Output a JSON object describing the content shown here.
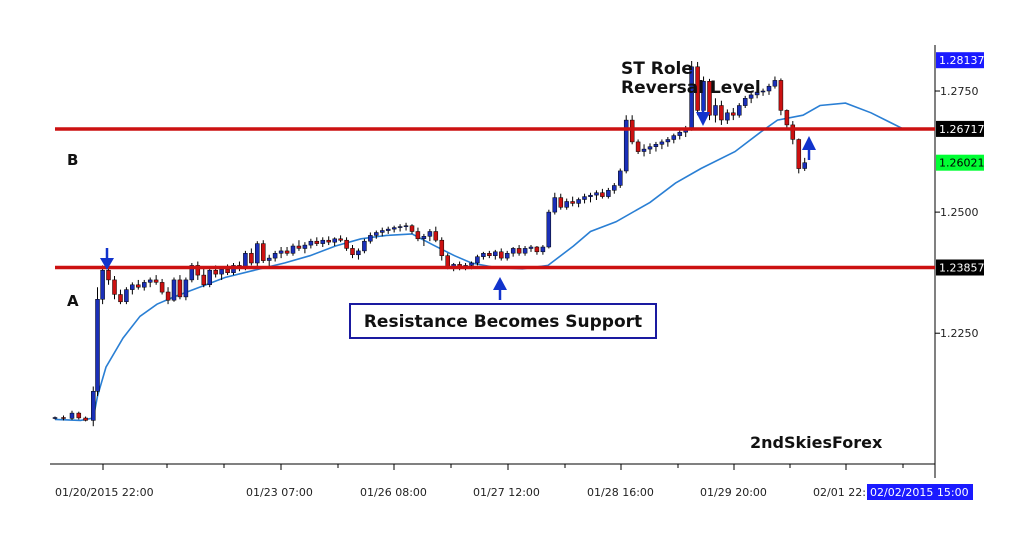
{
  "chart_data": {
    "type": "candlestick",
    "instrument": "",
    "y_ticks": [
      "1.2750",
      "1.2500",
      "1.2250"
    ],
    "y_tick_values": [
      1.275,
      1.25,
      1.225
    ],
    "ylim": [
      1.198,
      1.2845
    ],
    "x_ticks": [
      "01/20/2015 22:00",
      "01/23 07:00",
      "01/26 08:00",
      "01/27 12:00",
      "01/28 16:00",
      "01/29 20:00",
      "02/01 22:"
    ],
    "price_tags": {
      "top": {
        "label": "1.28137",
        "value": 1.28137,
        "bg": "#1a1aff",
        "fg": "#ffffff"
      },
      "level_b": {
        "label": "1.26717",
        "value": 1.26717,
        "bg": "#000000",
        "fg": "#ffffff"
      },
      "current": {
        "label": "1.26021",
        "value": 1.26021,
        "bg": "#00ff33",
        "fg": "#000000"
      },
      "level_a": {
        "label": "1.23857",
        "value": 1.23857,
        "bg": "#000000",
        "fg": "#ffffff"
      }
    },
    "current_time_label": "02/02/2015 15:00",
    "horizontal_levels": [
      {
        "name": "B",
        "value": 1.26717,
        "color": "#cc1111"
      },
      {
        "name": "A",
        "value": 1.23857,
        "color": "#cc1111"
      }
    ],
    "annotations": {
      "st_role_line1": "ST Role",
      "st_role_line2": "Reversal Level",
      "callout": "Resistance Becomes Support",
      "brand": "2ndSkiesForex"
    },
    "ma_series": [
      [
        0,
        1.2072
      ],
      [
        0.03,
        1.207
      ],
      [
        0.045,
        1.2075
      ],
      [
        0.05,
        1.212
      ],
      [
        0.06,
        1.218
      ],
      [
        0.08,
        1.224
      ],
      [
        0.1,
        1.2285
      ],
      [
        0.12,
        1.231
      ],
      [
        0.14,
        1.2325
      ],
      [
        0.17,
        1.2345
      ],
      [
        0.2,
        1.2365
      ],
      [
        0.23,
        1.2378
      ],
      [
        0.27,
        1.2395
      ],
      [
        0.3,
        1.241
      ],
      [
        0.33,
        1.243
      ],
      [
        0.36,
        1.2445
      ],
      [
        0.39,
        1.2452
      ],
      [
        0.42,
        1.2455
      ],
      [
        0.445,
        1.2432
      ],
      [
        0.47,
        1.241
      ],
      [
        0.49,
        1.2395
      ],
      [
        0.52,
        1.2385
      ],
      [
        0.55,
        1.2383
      ],
      [
        0.58,
        1.239
      ],
      [
        0.61,
        1.243
      ],
      [
        0.63,
        1.246
      ],
      [
        0.66,
        1.248
      ],
      [
        0.7,
        1.252
      ],
      [
        0.73,
        1.256
      ],
      [
        0.76,
        1.259
      ],
      [
        0.8,
        1.2625
      ],
      [
        0.83,
        1.2665
      ],
      [
        0.85,
        1.269
      ],
      [
        0.88,
        1.27
      ],
      [
        0.9,
        1.272
      ],
      [
        0.93,
        1.2725
      ],
      [
        0.96,
        1.2705
      ],
      [
        1.0,
        1.267
      ]
    ],
    "candles": [
      [
        0.0,
        1.2075,
        1.2078,
        1.2072,
        1.2076
      ],
      [
        0.01,
        1.2076,
        1.208,
        1.207,
        1.2074
      ],
      [
        0.02,
        1.2074,
        1.209,
        1.2071,
        1.2085
      ],
      [
        0.028,
        1.2085,
        1.2088,
        1.2072,
        1.2075
      ],
      [
        0.036,
        1.2075,
        1.2078,
        1.2068,
        1.207
      ],
      [
        0.045,
        1.207,
        1.214,
        1.2058,
        1.213
      ],
      [
        0.05,
        1.213,
        1.2345,
        1.212,
        1.232
      ],
      [
        0.056,
        1.232,
        1.239,
        1.231,
        1.238
      ],
      [
        0.063,
        1.238,
        1.2388,
        1.235,
        1.236
      ],
      [
        0.07,
        1.236,
        1.2368,
        1.232,
        1.233
      ],
      [
        0.077,
        1.233,
        1.234,
        1.231,
        1.2315
      ],
      [
        0.084,
        1.2315,
        1.2345,
        1.231,
        1.234
      ],
      [
        0.091,
        1.234,
        1.2355,
        1.233,
        1.235
      ],
      [
        0.098,
        1.235,
        1.236,
        1.234,
        1.2345
      ],
      [
        0.105,
        1.2345,
        1.236,
        1.2338,
        1.2355
      ],
      [
        0.112,
        1.2355,
        1.2365,
        1.2345,
        1.236
      ],
      [
        0.119,
        1.236,
        1.237,
        1.235,
        1.2355
      ],
      [
        0.126,
        1.2355,
        1.2362,
        1.233,
        1.2335
      ],
      [
        0.133,
        1.2335,
        1.2345,
        1.231,
        1.2318
      ],
      [
        0.14,
        1.2318,
        1.2365,
        1.2315,
        1.236
      ],
      [
        0.147,
        1.236,
        1.237,
        1.232,
        1.2325
      ],
      [
        0.154,
        1.2325,
        1.2365,
        1.2318,
        1.236
      ],
      [
        0.161,
        1.236,
        1.2395,
        1.2355,
        1.239
      ],
      [
        0.168,
        1.239,
        1.2398,
        1.236,
        1.237
      ],
      [
        0.175,
        1.237,
        1.2385,
        1.2345,
        1.235
      ],
      [
        0.182,
        1.235,
        1.2385,
        1.2345,
        1.238
      ],
      [
        0.189,
        1.238,
        1.239,
        1.2365,
        1.2372
      ],
      [
        0.196,
        1.2372,
        1.2388,
        1.236,
        1.2382
      ],
      [
        0.203,
        1.2382,
        1.2392,
        1.237,
        1.2375
      ],
      [
        0.21,
        1.2375,
        1.2395,
        1.237,
        1.239
      ],
      [
        0.217,
        1.239,
        1.2398,
        1.2378,
        1.2385
      ],
      [
        0.224,
        1.2385,
        1.242,
        1.238,
        1.2415
      ],
      [
        0.231,
        1.2415,
        1.2425,
        1.239,
        1.2395
      ],
      [
        0.238,
        1.2395,
        1.244,
        1.2385,
        1.2435
      ],
      [
        0.245,
        1.2435,
        1.2442,
        1.2395,
        1.24
      ],
      [
        0.252,
        1.24,
        1.2412,
        1.2385,
        1.2405
      ],
      [
        0.259,
        1.2405,
        1.242,
        1.2398,
        1.2415
      ],
      [
        0.266,
        1.2415,
        1.2428,
        1.2405,
        1.242
      ],
      [
        0.273,
        1.242,
        1.2428,
        1.241,
        1.2415
      ],
      [
        0.28,
        1.2415,
        1.2435,
        1.241,
        1.243
      ],
      [
        0.287,
        1.243,
        1.2442,
        1.242,
        1.2425
      ],
      [
        0.294,
        1.2425,
        1.2438,
        1.2415,
        1.2432
      ],
      [
        0.301,
        1.2432,
        1.2445,
        1.2425,
        1.244
      ],
      [
        0.308,
        1.244,
        1.2448,
        1.243,
        1.2435
      ],
      [
        0.315,
        1.2435,
        1.2448,
        1.2428,
        1.2442
      ],
      [
        0.322,
        1.2442,
        1.245,
        1.2432,
        1.2438
      ],
      [
        0.329,
        1.2438,
        1.2448,
        1.243,
        1.2445
      ],
      [
        0.336,
        1.2445,
        1.2452,
        1.2438,
        1.2442
      ],
      [
        0.343,
        1.2442,
        1.2448,
        1.242,
        1.2425
      ],
      [
        0.35,
        1.2425,
        1.2432,
        1.2405,
        1.2412
      ],
      [
        0.357,
        1.2412,
        1.2425,
        1.2402,
        1.242
      ],
      [
        0.364,
        1.242,
        1.2445,
        1.2415,
        1.244
      ],
      [
        0.371,
        1.244,
        1.2458,
        1.2435,
        1.2452
      ],
      [
        0.378,
        1.2452,
        1.2462,
        1.2445,
        1.2458
      ],
      [
        0.385,
        1.2458,
        1.2468,
        1.245,
        1.2462
      ],
      [
        0.392,
        1.2462,
        1.247,
        1.2455,
        1.2465
      ],
      [
        0.399,
        1.2465,
        1.2472,
        1.2458,
        1.2468
      ],
      [
        0.406,
        1.2468,
        1.2475,
        1.246,
        1.247
      ],
      [
        0.413,
        1.247,
        1.2478,
        1.2462,
        1.2472
      ],
      [
        0.42,
        1.2472,
        1.2475,
        1.2455,
        1.246
      ],
      [
        0.427,
        1.246,
        1.2468,
        1.244,
        1.2445
      ],
      [
        0.434,
        1.2445,
        1.2455,
        1.243,
        1.245
      ],
      [
        0.441,
        1.245,
        1.2465,
        1.244,
        1.246
      ],
      [
        0.448,
        1.246,
        1.247,
        1.2438,
        1.2442
      ],
      [
        0.455,
        1.2442,
        1.2448,
        1.24,
        1.241
      ],
      [
        0.462,
        1.241,
        1.2415,
        1.2382,
        1.2388
      ],
      [
        0.469,
        1.2388,
        1.2395,
        1.2378,
        1.2392
      ],
      [
        0.476,
        1.2392,
        1.2398,
        1.238,
        1.2385
      ],
      [
        0.483,
        1.2385,
        1.2395,
        1.238,
        1.239
      ],
      [
        0.49,
        1.239,
        1.2398,
        1.2382,
        1.2395
      ],
      [
        0.497,
        1.2395,
        1.2412,
        1.239,
        1.2408
      ],
      [
        0.504,
        1.2408,
        1.2418,
        1.2402,
        1.2415
      ],
      [
        0.511,
        1.2415,
        1.242,
        1.2405,
        1.241
      ],
      [
        0.518,
        1.241,
        1.2422,
        1.2402,
        1.2418
      ],
      [
        0.525,
        1.2418,
        1.2425,
        1.24,
        1.2405
      ],
      [
        0.532,
        1.2405,
        1.242,
        1.24,
        1.2415
      ],
      [
        0.539,
        1.2415,
        1.2428,
        1.2408,
        1.2425
      ],
      [
        0.546,
        1.2425,
        1.2432,
        1.241,
        1.2415
      ],
      [
        0.553,
        1.2415,
        1.243,
        1.241,
        1.2425
      ],
      [
        0.56,
        1.2425,
        1.2432,
        1.2418,
        1.2428
      ],
      [
        0.567,
        1.2428,
        1.243,
        1.2412,
        1.2418
      ],
      [
        0.574,
        1.2418,
        1.2432,
        1.2412,
        1.2428
      ],
      [
        0.581,
        1.2428,
        1.2505,
        1.2425,
        1.25
      ],
      [
        0.588,
        1.25,
        1.254,
        1.2495,
        1.253
      ],
      [
        0.595,
        1.253,
        1.2538,
        1.2505,
        1.251
      ],
      [
        0.602,
        1.251,
        1.2528,
        1.2505,
        1.2522
      ],
      [
        0.609,
        1.2522,
        1.2532,
        1.2512,
        1.2518
      ],
      [
        0.616,
        1.2518,
        1.253,
        1.251,
        1.2526
      ],
      [
        0.623,
        1.2526,
        1.2538,
        1.2518,
        1.2532
      ],
      [
        0.63,
        1.2532,
        1.254,
        1.252,
        1.2535
      ],
      [
        0.637,
        1.2535,
        1.2545,
        1.2525,
        1.254
      ],
      [
        0.644,
        1.254,
        1.2548,
        1.2528,
        1.2532
      ],
      [
        0.651,
        1.2532,
        1.255,
        1.2528,
        1.2545
      ],
      [
        0.658,
        1.2545,
        1.256,
        1.2538,
        1.2555
      ],
      [
        0.665,
        1.2555,
        1.259,
        1.255,
        1.2585
      ],
      [
        0.672,
        1.2585,
        1.27,
        1.258,
        1.269
      ],
      [
        0.679,
        1.269,
        1.27,
        1.264,
        1.2645
      ],
      [
        0.686,
        1.2645,
        1.265,
        1.262,
        1.2625
      ],
      [
        0.693,
        1.2625,
        1.264,
        1.2615,
        1.263
      ],
      [
        0.7,
        1.263,
        1.2642,
        1.262,
        1.2635
      ],
      [
        0.707,
        1.2635,
        1.2645,
        1.2625,
        1.264
      ],
      [
        0.714,
        1.264,
        1.265,
        1.263,
        1.2645
      ],
      [
        0.721,
        1.2645,
        1.2655,
        1.2635,
        1.265
      ],
      [
        0.728,
        1.265,
        1.2662,
        1.2642,
        1.2658
      ],
      [
        0.735,
        1.2658,
        1.267,
        1.265,
        1.2665
      ],
      [
        0.742,
        1.2665,
        1.2678,
        1.2655,
        1.2672
      ],
      [
        0.749,
        1.2672,
        1.2812,
        1.2668,
        1.28
      ],
      [
        0.756,
        1.28,
        1.281,
        1.27,
        1.271
      ],
      [
        0.763,
        1.271,
        1.278,
        1.27,
        1.277
      ],
      [
        0.77,
        1.277,
        1.2775,
        1.269,
        1.27
      ],
      [
        0.777,
        1.27,
        1.2735,
        1.2685,
        1.272
      ],
      [
        0.784,
        1.272,
        1.273,
        1.268,
        1.269
      ],
      [
        0.791,
        1.269,
        1.2712,
        1.2682,
        1.2705
      ],
      [
        0.798,
        1.2705,
        1.2715,
        1.269,
        1.27
      ],
      [
        0.805,
        1.27,
        1.2725,
        1.2695,
        1.272
      ],
      [
        0.812,
        1.272,
        1.274,
        1.2715,
        1.2735
      ],
      [
        0.819,
        1.2735,
        1.2748,
        1.2725,
        1.2742
      ],
      [
        0.826,
        1.2742,
        1.2752,
        1.2735,
        1.2748
      ],
      [
        0.833,
        1.2748,
        1.2755,
        1.274,
        1.275
      ],
      [
        0.84,
        1.275,
        1.2765,
        1.2742,
        1.276
      ],
      [
        0.847,
        1.276,
        1.278,
        1.2755,
        1.2772
      ],
      [
        0.854,
        1.2772,
        1.2776,
        1.27,
        1.271
      ],
      [
        0.861,
        1.271,
        1.2712,
        1.267,
        1.268
      ],
      [
        0.868,
        1.268,
        1.2688,
        1.264,
        1.265
      ],
      [
        0.875,
        1.265,
        1.2652,
        1.258,
        1.259
      ],
      [
        0.882,
        1.259,
        1.2612,
        1.2585,
        1.2602
      ]
    ]
  }
}
